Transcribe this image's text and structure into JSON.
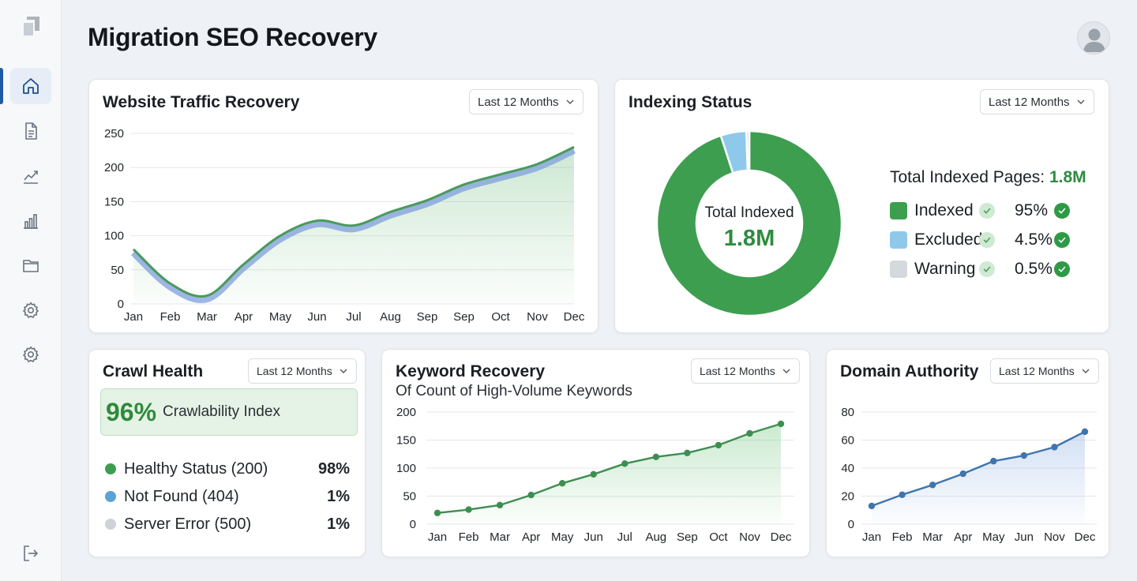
{
  "page": {
    "title": "Migration SEO Recovery"
  },
  "sidebar": {
    "items": [
      {
        "icon": "home-icon",
        "active": true
      },
      {
        "icon": "document-icon"
      },
      {
        "icon": "trend-icon"
      },
      {
        "icon": "bar-chart-icon"
      },
      {
        "icon": "folder-icon"
      },
      {
        "icon": "gear-icon"
      },
      {
        "icon": "gear-icon"
      }
    ],
    "bottom_icon": "logout-icon"
  },
  "colors": {
    "green": "#2e9a46",
    "light_blue": "#8ec9ec",
    "gray": "#d5d8dc",
    "blue": "#3f74ad",
    "accent": "#1f5aa6"
  },
  "traffic": {
    "title": "Website Traffic Recovery",
    "range": "Last 12 Months"
  },
  "indexing": {
    "title": "Indexing Status",
    "range": "Last 12 Months",
    "center_label": "Total Indexed",
    "center_value": "1.8M",
    "total_label": "Total Indexed Pages:",
    "total_value": "1.8M",
    "legend": [
      {
        "label": "Indexed",
        "value": "95%",
        "color": "#3d9e50"
      },
      {
        "label": "Excluded",
        "value": "4.5%",
        "color": "#8ec9ec"
      },
      {
        "label": "Warning",
        "value": "0.5%",
        "color": "#d5d8dc"
      }
    ]
  },
  "crawl": {
    "title": "Crawl Health",
    "range": "Last 12 Months",
    "index_value": "96%",
    "index_label": "Crawlability Index",
    "rows": [
      {
        "label": "Healthy Status (200)",
        "value": "98%",
        "color": "#3d9e50"
      },
      {
        "label": "Not Found (404)",
        "value": "1%",
        "color": "#5ba3d6"
      },
      {
        "label": "Server Error (500)",
        "value": "1%",
        "color": "#cfd2d6"
      }
    ]
  },
  "keywords": {
    "title": "Keyword Recovery",
    "subtitle": "Of Count of  High-Volume Keywords",
    "range": "Last 12 Months"
  },
  "authority": {
    "title": "Domain Authority",
    "range": "Last 12 Months"
  },
  "chart_data": [
    {
      "id": "traffic",
      "type": "area",
      "categories": [
        "Jan",
        "Feb",
        "Mar",
        "Apr",
        "May",
        "Jun",
        "Jul",
        "Aug",
        "Sep",
        "Sep",
        "Oct",
        "Nov",
        "Dec"
      ],
      "x": [
        0,
        1,
        2,
        3,
        4,
        5,
        6,
        7,
        8,
        9,
        10,
        11,
        12
      ],
      "values": [
        80,
        30,
        12,
        58,
        100,
        122,
        115,
        135,
        152,
        175,
        190,
        205,
        230
      ],
      "ylim": [
        0,
        250
      ],
      "yticks": [
        0,
        50,
        100,
        150,
        200,
        250
      ],
      "grid": true
    },
    {
      "id": "indexing",
      "type": "pie",
      "labels": [
        "Indexed",
        "Excluded",
        "Warning"
      ],
      "values": [
        95,
        4.5,
        0.5
      ]
    },
    {
      "id": "keywords",
      "type": "line",
      "categories": [
        "Jan",
        "Feb",
        "Mar",
        "Apr",
        "May",
        "Jun",
        "Jul",
        "Aug",
        "Sep",
        "Oct",
        "Nov",
        "Dec"
      ],
      "values": [
        20,
        26,
        34,
        52,
        73,
        89,
        108,
        120,
        127,
        141,
        162,
        179
      ],
      "ylim": [
        0,
        200
      ],
      "yticks": [
        0,
        50,
        100,
        150,
        200
      ],
      "grid": true
    },
    {
      "id": "authority",
      "type": "line",
      "categories": [
        "Jan",
        "Feb",
        "Mar",
        "Apr",
        "May",
        "Jun",
        "Nov",
        "Dec"
      ],
      "values": [
        13,
        21,
        28,
        36,
        45,
        49,
        55,
        66
      ],
      "ylim": [
        0,
        80
      ],
      "yticks": [
        0,
        20,
        40,
        60,
        80
      ],
      "grid": true
    }
  ]
}
